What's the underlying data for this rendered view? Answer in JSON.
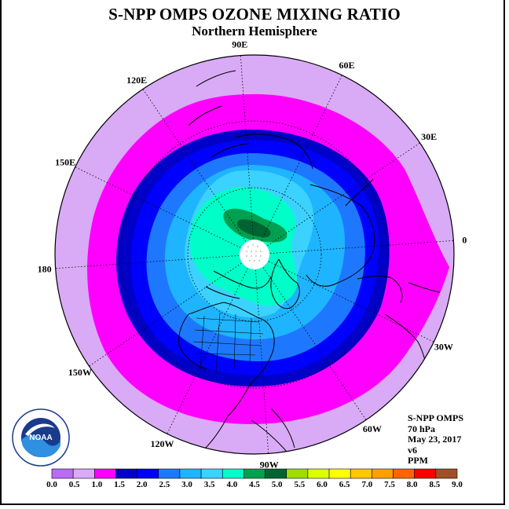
{
  "title": "S-NPP OMPS OZONE MIXING RATIO",
  "subtitle": "Northern Hemisphere",
  "longitude_labels": [
    {
      "lon": 90,
      "text": "90E"
    },
    {
      "lon": 60,
      "text": "60E"
    },
    {
      "lon": 30,
      "text": "30E"
    },
    {
      "lon": 0,
      "text": "0"
    },
    {
      "lon": -30,
      "text": "30W"
    },
    {
      "lon": -60,
      "text": "60W"
    },
    {
      "lon": -90,
      "text": "90W"
    },
    {
      "lon": -120,
      "text": "120W"
    },
    {
      "lon": -150,
      "text": "150W"
    },
    {
      "lon": 180,
      "text": "180"
    },
    {
      "lon": 150,
      "text": "150E"
    },
    {
      "lon": 120,
      "text": "120E"
    }
  ],
  "info": {
    "instrument": "S-NPP OMPS",
    "level": "70 hPa",
    "date": "May 23, 2017",
    "version": "v6",
    "units": "PPM"
  },
  "colorbar": {
    "ticks": [
      "0.0",
      "0.5",
      "1.0",
      "1.5",
      "2.0",
      "2.5",
      "3.0",
      "3.5",
      "4.0",
      "4.5",
      "5.0",
      "5.5",
      "6.0",
      "6.5",
      "7.0",
      "7.5",
      "8.0",
      "8.5",
      "9.0"
    ],
    "colors": [
      "#b96cf2",
      "#d9aaf5",
      "#ff00ff",
      "#0000c8",
      "#0000ff",
      "#1e78ff",
      "#1eb4ff",
      "#3cd2ff",
      "#00ffc8",
      "#00a050",
      "#006432",
      "#a0dc00",
      "#dcff00",
      "#ffff00",
      "#ffc800",
      "#ffa000",
      "#ff6400",
      "#ff0000",
      "#a05028"
    ]
  },
  "logo": {
    "text": "NOAA",
    "ring_text": "NATIONAL OCEANIC AND ATMOSPHERIC ADMINISTRATION · U.S. DEPARTMENT OF COMMERCE"
  }
}
